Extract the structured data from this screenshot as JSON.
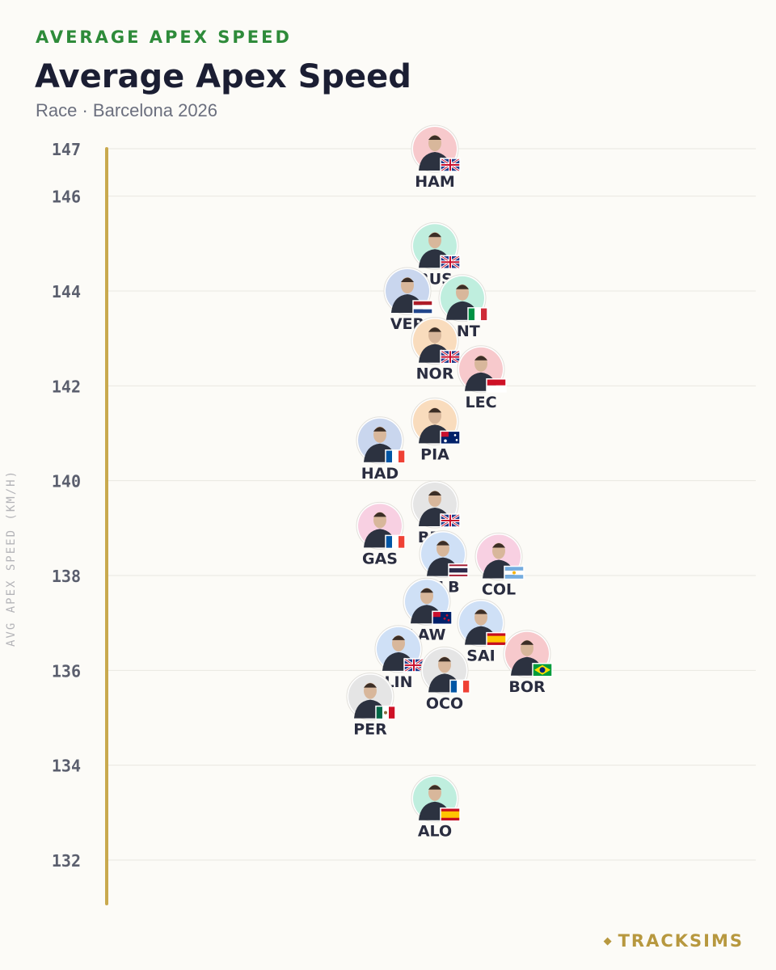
{
  "header": {
    "kicker": "AVERAGE APEX SPEED",
    "title": "Average Apex Speed",
    "subtitle": "Race · Barcelona 2026"
  },
  "brand": {
    "name": "TRACKSIMS",
    "accent": "#b7983f"
  },
  "chart_data": {
    "type": "scatter",
    "title": "Average Apex Speed",
    "subtitle": "Race · Barcelona 2026",
    "ylabel": "AVG APEX SPEED (KM/H)",
    "ylim": [
      131.2,
      147.2
    ],
    "yticks": [
      132,
      134,
      136,
      138,
      140,
      142,
      144,
      146,
      147
    ],
    "grid": true,
    "colors": {
      "axis": "#c9a94e",
      "grid": "#e9e7e2",
      "label": "#2a2d40",
      "tick": "#5b5f6e"
    },
    "points": [
      {
        "code": "HAM",
        "value": 147.0,
        "team_color": "#f7c9cc",
        "flag": "gb"
      },
      {
        "code": "RUS",
        "value": 144.95,
        "team_color": "#bfeede",
        "flag": "gb"
      },
      {
        "code": "VER",
        "value": 144.0,
        "team_color": "#c9d6ee",
        "flag": "nl"
      },
      {
        "code": "ANT",
        "value": 143.85,
        "team_color": "#bfeede",
        "flag": "it"
      },
      {
        "code": "NOR",
        "value": 142.95,
        "team_color": "#f9dcbd",
        "flag": "gb"
      },
      {
        "code": "LEC",
        "value": 142.35,
        "team_color": "#f7c9cc",
        "flag": "mc"
      },
      {
        "code": "PIA",
        "value": 141.25,
        "team_color": "#f9dcbd",
        "flag": "au"
      },
      {
        "code": "HAD",
        "value": 140.85,
        "team_color": "#c9d6ee",
        "flag": "fr"
      },
      {
        "code": "BEA",
        "value": 139.5,
        "team_color": "#e5e5e5",
        "flag": "gb"
      },
      {
        "code": "GAS",
        "value": 139.05,
        "team_color": "#f8d0e2",
        "flag": "fr"
      },
      {
        "code": "ALB",
        "value": 138.45,
        "team_color": "#cfe0f6",
        "flag": "th"
      },
      {
        "code": "COL",
        "value": 138.4,
        "team_color": "#f8d0e2",
        "flag": "ar"
      },
      {
        "code": "LAW",
        "value": 137.45,
        "team_color": "#cfe0f6",
        "flag": "nz"
      },
      {
        "code": "SAI",
        "value": 137.0,
        "team_color": "#cfe0f6",
        "flag": "es"
      },
      {
        "code": "LIN",
        "value": 136.45,
        "team_color": "#cfe0f6",
        "flag": "gb"
      },
      {
        "code": "BOR",
        "value": 136.35,
        "team_color": "#f7c9cc",
        "flag": "br"
      },
      {
        "code": "OCO",
        "value": 136.0,
        "team_color": "#e5e5e5",
        "flag": "fr"
      },
      {
        "code": "PER",
        "value": 135.45,
        "team_color": "#e5e5e5",
        "flag": "mx"
      },
      {
        "code": "ALO",
        "value": 133.3,
        "team_color": "#bfeede",
        "flag": "es"
      }
    ]
  }
}
